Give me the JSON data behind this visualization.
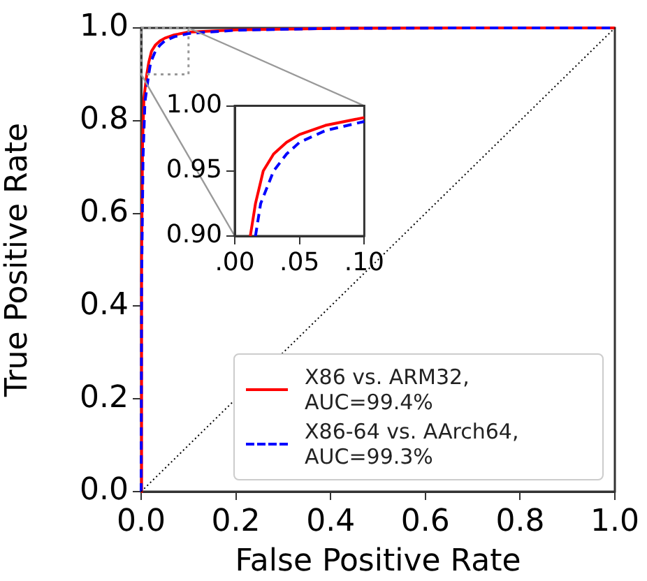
{
  "chart_data": [
    {
      "type": "line",
      "xlabel": "False Positive Rate",
      "ylabel": "True Positive Rate",
      "xlim": [
        0,
        1
      ],
      "ylim": [
        0,
        1
      ],
      "xticks": [
        {
          "value": 0,
          "label": "0.0"
        },
        {
          "value": 0.2,
          "label": "0.2"
        },
        {
          "value": 0.4,
          "label": "0.4"
        },
        {
          "value": 0.6,
          "label": "0.6"
        },
        {
          "value": 0.8,
          "label": "0.8"
        },
        {
          "value": 1,
          "label": "1.0"
        }
      ],
      "yticks": [
        {
          "value": 0,
          "label": "0.0"
        },
        {
          "value": 0.2,
          "label": "0.2"
        },
        {
          "value": 0.4,
          "label": "0.4"
        },
        {
          "value": 0.6,
          "label": "0.6"
        },
        {
          "value": 0.8,
          "label": "0.8"
        },
        {
          "value": 1,
          "label": "1.0"
        }
      ],
      "grid": false,
      "legend": "bottom right",
      "marker": "none",
      "series": [
        {
          "name": "X86 vs. ARM32, AUC=99.4%",
          "color": "#ff0000",
          "line_style": "solid",
          "x": [
            0,
            0.001,
            0.003,
            0.006,
            0.012,
            0.016,
            0.022,
            0.03,
            0.04,
            0.05,
            0.07,
            0.1,
            0.2,
            0.4,
            0.7,
            1
          ],
          "values": [
            0,
            0.5,
            0.75,
            0.85,
            0.9,
            0.925,
            0.95,
            0.963,
            0.972,
            0.978,
            0.985,
            0.991,
            0.996,
            0.999,
            1,
            1
          ]
        },
        {
          "name": "X86-64 vs. AArch64, AUC=99.3%",
          "color": "#0000ff",
          "line_style": "dashed",
          "x": [
            0,
            0.001,
            0.004,
            0.008,
            0.016,
            0.02,
            0.03,
            0.04,
            0.05,
            0.07,
            0.1,
            0.2,
            0.4,
            0.7,
            1
          ],
          "values": [
            0,
            0.45,
            0.72,
            0.84,
            0.9,
            0.925,
            0.95,
            0.963,
            0.972,
            0.981,
            0.988,
            0.995,
            0.999,
            1,
            1
          ]
        },
        {
          "color": "#000000",
          "line_style": "dotted",
          "x": [
            0,
            1
          ],
          "values": [
            0,
            1
          ]
        }
      ]
    },
    {
      "type": "line",
      "xlim": [
        0,
        0.1
      ],
      "ylim": [
        0.9,
        1.0
      ],
      "xticks": [
        {
          "value": 0,
          "label": ".00"
        },
        {
          "value": 0.05,
          "label": ".05"
        },
        {
          "value": 0.1,
          "label": ".10"
        }
      ],
      "yticks": [
        {
          "value": 0.9,
          "label": "0.90"
        },
        {
          "value": 0.95,
          "label": "0.95"
        },
        {
          "value": 1.0,
          "label": "1.00"
        }
      ],
      "grid": false,
      "marker": "none",
      "series": [
        {
          "color": "#ff0000",
          "line_style": "solid",
          "x": [
            0.012,
            0.016,
            0.022,
            0.03,
            0.04,
            0.05,
            0.07,
            0.1
          ],
          "values": [
            0.9,
            0.925,
            0.95,
            0.963,
            0.972,
            0.978,
            0.985,
            0.991
          ]
        },
        {
          "color": "#0000ff",
          "line_style": "dashed",
          "x": [
            0.016,
            0.02,
            0.03,
            0.04,
            0.05,
            0.07,
            0.1
          ],
          "values": [
            0.9,
            0.925,
            0.95,
            0.963,
            0.972,
            0.981,
            0.988
          ]
        }
      ]
    }
  ]
}
